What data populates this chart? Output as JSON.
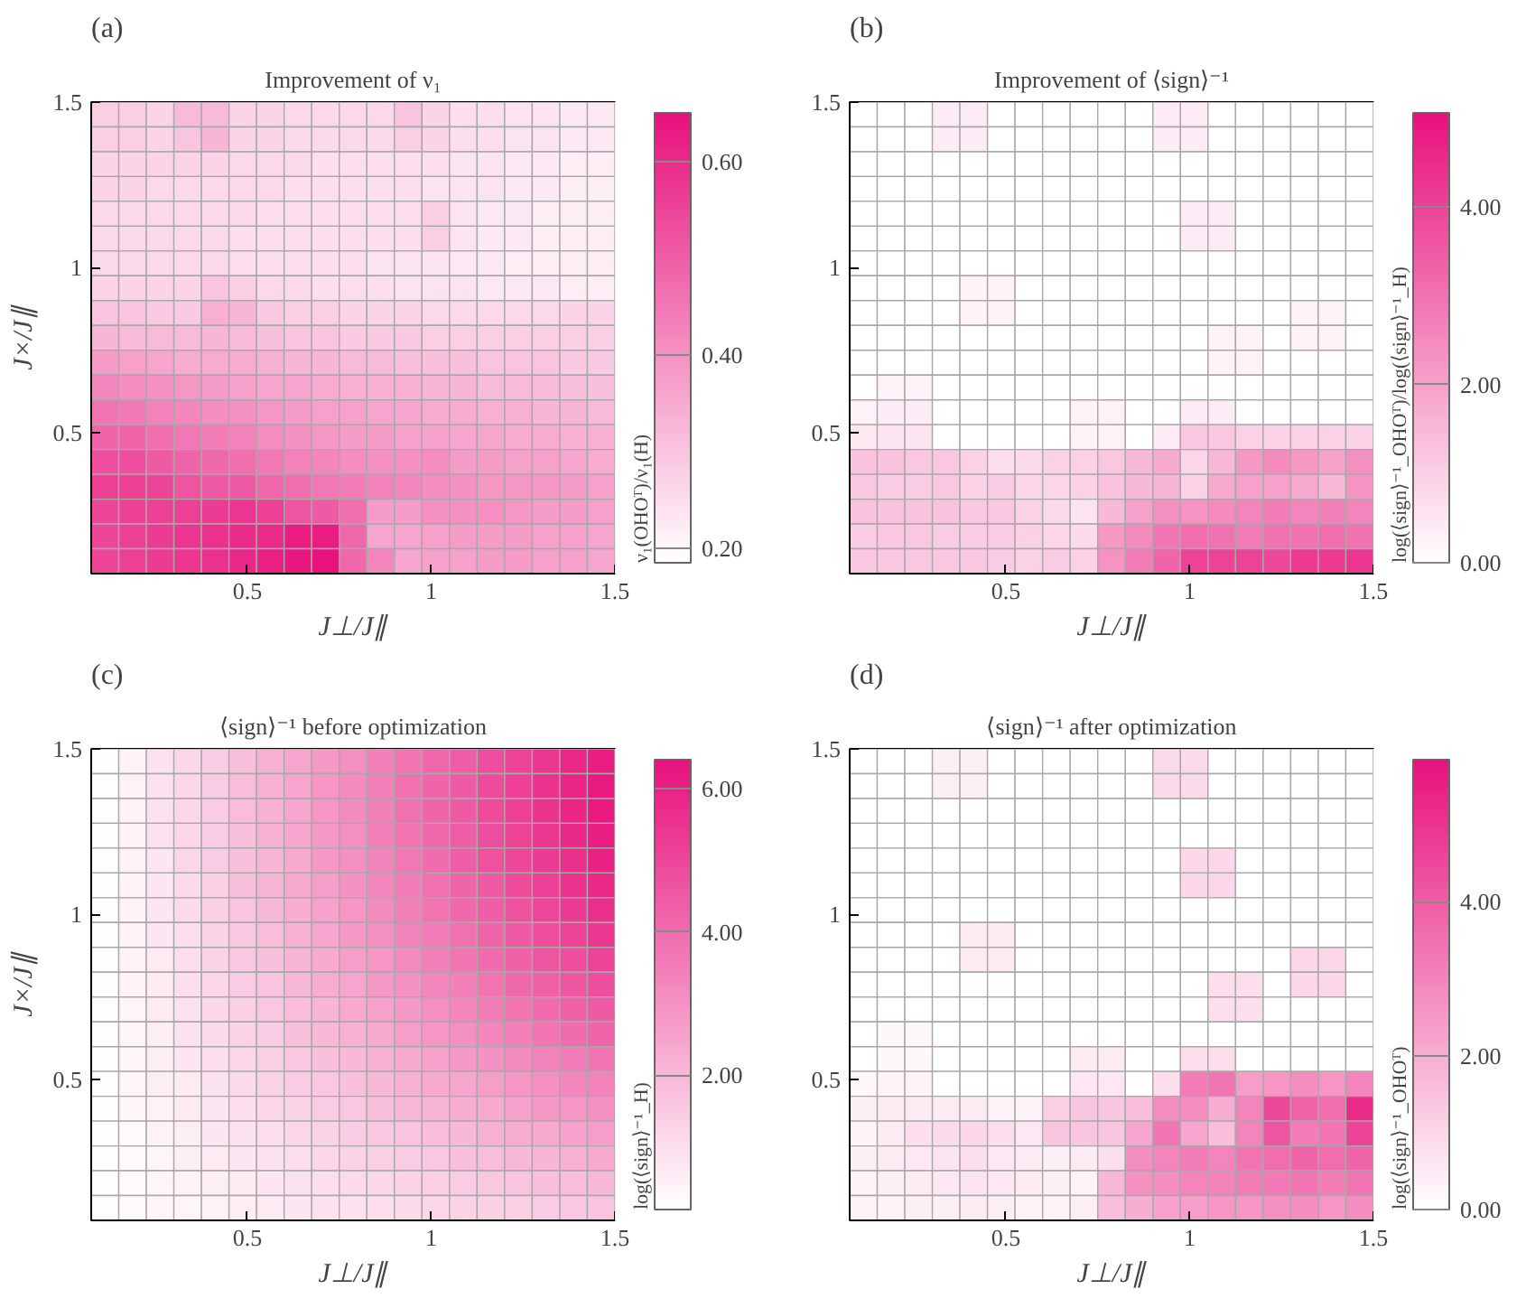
{
  "chart_data": [
    {
      "type": "heatmap",
      "title": "Improvement of ν₁",
      "annotations": [
        "(a)"
      ],
      "xlabel": "J⊥/J∥",
      "ylabel": "J×/J∥",
      "clabel": "ν₁(OHOᵀ)/ν₁(H)",
      "color": "#e8127c",
      "xlim": [
        0.075,
        1.5
      ],
      "ylim": [
        0.075,
        1.5
      ],
      "xticks": [
        0.5,
        1,
        1.5
      ],
      "yticks": [
        0.5,
        1,
        1.5
      ],
      "clim": [
        0.185,
        0.65
      ],
      "cticks": [
        {
          "value": 0.2,
          "label": "0.20"
        },
        {
          "value": 0.4,
          "label": "0.40"
        },
        {
          "value": 0.6,
          "label": "0.60"
        }
      ],
      "x": [
        0.1125,
        0.1875,
        0.2625,
        0.3375,
        0.4125,
        0.4875,
        0.5625,
        0.6375,
        0.7125,
        0.7875,
        0.8625,
        0.9375,
        1.0125,
        1.0875,
        1.1625,
        1.2375,
        1.3125,
        1.3875,
        1.4625
      ],
      "y": [
        1.4625,
        1.3875,
        1.3125,
        1.2375,
        1.1625,
        1.0875,
        1.0125,
        0.9375,
        0.8625,
        0.7875,
        0.7125,
        0.6375,
        0.5625,
        0.4875,
        0.4125,
        0.3375,
        0.2625,
        0.1875,
        0.1125
      ],
      "cells": [
        [
          0.28,
          0.28,
          0.27,
          0.32,
          0.32,
          0.27,
          0.27,
          0.26,
          0.26,
          0.26,
          0.26,
          0.3,
          0.27,
          0.25,
          0.25,
          0.24,
          0.24,
          0.23,
          0.23
        ],
        [
          0.28,
          0.28,
          0.27,
          0.3,
          0.33,
          0.27,
          0.27,
          0.26,
          0.26,
          0.26,
          0.26,
          0.28,
          0.27,
          0.25,
          0.25,
          0.24,
          0.24,
          0.23,
          0.23
        ],
        [
          0.27,
          0.27,
          0.27,
          0.27,
          0.27,
          0.26,
          0.26,
          0.26,
          0.25,
          0.25,
          0.25,
          0.25,
          0.25,
          0.24,
          0.24,
          0.23,
          0.23,
          0.22,
          0.22
        ],
        [
          0.27,
          0.27,
          0.26,
          0.26,
          0.26,
          0.26,
          0.26,
          0.25,
          0.25,
          0.25,
          0.25,
          0.25,
          0.24,
          0.24,
          0.24,
          0.23,
          0.23,
          0.22,
          0.22
        ],
        [
          0.26,
          0.26,
          0.26,
          0.26,
          0.26,
          0.26,
          0.25,
          0.25,
          0.25,
          0.25,
          0.25,
          0.25,
          0.28,
          0.24,
          0.23,
          0.23,
          0.22,
          0.22,
          0.22
        ],
        [
          0.26,
          0.26,
          0.26,
          0.26,
          0.26,
          0.25,
          0.25,
          0.25,
          0.25,
          0.25,
          0.25,
          0.25,
          0.28,
          0.24,
          0.23,
          0.23,
          0.22,
          0.22,
          0.22
        ],
        [
          0.26,
          0.26,
          0.26,
          0.26,
          0.26,
          0.25,
          0.25,
          0.25,
          0.25,
          0.25,
          0.24,
          0.24,
          0.24,
          0.23,
          0.23,
          0.22,
          0.22,
          0.22,
          0.22
        ],
        [
          0.27,
          0.27,
          0.27,
          0.27,
          0.3,
          0.28,
          0.26,
          0.26,
          0.25,
          0.25,
          0.25,
          0.24,
          0.24,
          0.24,
          0.23,
          0.23,
          0.23,
          0.22,
          0.22
        ],
        [
          0.3,
          0.3,
          0.29,
          0.29,
          0.34,
          0.33,
          0.29,
          0.28,
          0.28,
          0.27,
          0.27,
          0.27,
          0.26,
          0.26,
          0.26,
          0.26,
          0.26,
          0.27,
          0.27
        ],
        [
          0.33,
          0.32,
          0.32,
          0.32,
          0.33,
          0.32,
          0.31,
          0.3,
          0.3,
          0.29,
          0.29,
          0.29,
          0.28,
          0.28,
          0.28,
          0.28,
          0.28,
          0.28,
          0.28
        ],
        [
          0.38,
          0.37,
          0.36,
          0.35,
          0.35,
          0.35,
          0.34,
          0.33,
          0.33,
          0.32,
          0.32,
          0.31,
          0.31,
          0.31,
          0.3,
          0.3,
          0.3,
          0.29,
          0.29
        ],
        [
          0.42,
          0.41,
          0.4,
          0.39,
          0.38,
          0.37,
          0.36,
          0.36,
          0.35,
          0.34,
          0.34,
          0.34,
          0.33,
          0.33,
          0.32,
          0.32,
          0.32,
          0.31,
          0.31
        ],
        [
          0.46,
          0.45,
          0.43,
          0.42,
          0.41,
          0.4,
          0.39,
          0.38,
          0.37,
          0.37,
          0.36,
          0.36,
          0.35,
          0.35,
          0.34,
          0.34,
          0.33,
          0.33,
          0.32
        ],
        [
          0.49,
          0.49,
          0.47,
          0.45,
          0.44,
          0.43,
          0.41,
          0.4,
          0.39,
          0.38,
          0.38,
          0.37,
          0.37,
          0.36,
          0.36,
          0.35,
          0.35,
          0.34,
          0.34
        ],
        [
          0.53,
          0.53,
          0.51,
          0.49,
          0.48,
          0.47,
          0.45,
          0.43,
          0.42,
          0.41,
          0.4,
          0.4,
          0.41,
          0.38,
          0.38,
          0.37,
          0.37,
          0.36,
          0.35
        ],
        [
          0.56,
          0.56,
          0.55,
          0.52,
          0.51,
          0.51,
          0.48,
          0.47,
          0.45,
          0.44,
          0.43,
          0.42,
          0.41,
          0.4,
          0.39,
          0.39,
          0.39,
          0.38,
          0.37
        ],
        [
          0.55,
          0.56,
          0.56,
          0.56,
          0.57,
          0.58,
          0.56,
          0.52,
          0.51,
          0.47,
          0.38,
          0.38,
          0.4,
          0.4,
          0.4,
          0.39,
          0.38,
          0.38,
          0.37
        ],
        [
          0.55,
          0.56,
          0.57,
          0.58,
          0.59,
          0.6,
          0.6,
          0.63,
          0.63,
          0.48,
          0.36,
          0.36,
          0.37,
          0.38,
          0.38,
          0.38,
          0.37,
          0.37,
          0.36
        ],
        [
          0.55,
          0.56,
          0.57,
          0.58,
          0.59,
          0.61,
          0.62,
          0.64,
          0.65,
          0.48,
          0.42,
          0.36,
          0.37,
          0.37,
          0.38,
          0.38,
          0.37,
          0.37,
          0.36
        ]
      ]
    },
    {
      "type": "heatmap",
      "title": "Improvement of ⟨sign⟩⁻¹",
      "annotations": [
        "(b)"
      ],
      "xlabel": "J⊥/J∥",
      "clabel": "log(⟨sign⟩⁻¹_OHOᵀ)/log(⟨sign⟩⁻¹_H)",
      "color": "#e8127c",
      "xlim": [
        0.075,
        1.5
      ],
      "ylim": [
        0.075,
        1.5
      ],
      "xticks": [
        0.5,
        1,
        1.5
      ],
      "yticks": [
        0.5,
        1,
        1.5
      ],
      "clim": [
        0,
        5.05
      ],
      "cticks": [
        {
          "value": 0,
          "label": "0.00"
        },
        {
          "value": 2,
          "label": "2.00"
        },
        {
          "value": 4,
          "label": "4.00"
        }
      ],
      "x": [
        0.1125,
        0.1875,
        0.2625,
        0.3375,
        0.4125,
        0.4875,
        0.5625,
        0.6375,
        0.7125,
        0.7875,
        0.8625,
        0.9375,
        1.0125,
        1.0875,
        1.1625,
        1.2375,
        1.3125,
        1.3875,
        1.4625
      ],
      "y": [
        1.4625,
        1.3875,
        1.3125,
        1.2375,
        1.1625,
        1.0875,
        1.0125,
        0.9375,
        0.8625,
        0.7875,
        0.7125,
        0.6375,
        0.5625,
        0.4875,
        0.4125,
        0.3375,
        0.2625,
        0.1875,
        0.1125
      ],
      "cells": [
        [
          0,
          0,
          0,
          0.4,
          0.4,
          0,
          0,
          0,
          0,
          0,
          0,
          0.4,
          0.4,
          0,
          0,
          0,
          0,
          0,
          0
        ],
        [
          0,
          0,
          0,
          0.4,
          0.4,
          0,
          0,
          0,
          0,
          0,
          0,
          0.4,
          0.4,
          0,
          0,
          0,
          0,
          0,
          0
        ],
        [
          0,
          0,
          0,
          0,
          0,
          0,
          0,
          0,
          0,
          0,
          0,
          0,
          0,
          0,
          0,
          0,
          0,
          0,
          0
        ],
        [
          0,
          0,
          0,
          0,
          0,
          0,
          0,
          0,
          0,
          0,
          0,
          0,
          0,
          0,
          0,
          0,
          0,
          0,
          0
        ],
        [
          0,
          0,
          0,
          0,
          0,
          0,
          0,
          0,
          0,
          0,
          0,
          0,
          0.4,
          0.4,
          0,
          0,
          0,
          0,
          0
        ],
        [
          0,
          0,
          0,
          0,
          0,
          0,
          0,
          0,
          0,
          0,
          0,
          0,
          0.4,
          0.4,
          0,
          0,
          0,
          0,
          0
        ],
        [
          0,
          0,
          0,
          0,
          0,
          0,
          0,
          0,
          0,
          0,
          0,
          0,
          0,
          0,
          0,
          0,
          0,
          0,
          0
        ],
        [
          0,
          0,
          0,
          0,
          0.3,
          0.3,
          0,
          0,
          0,
          0,
          0,
          0,
          0,
          0,
          0,
          0,
          0,
          0,
          0
        ],
        [
          0,
          0,
          0,
          0,
          0.3,
          0.3,
          0,
          0,
          0,
          0,
          0,
          0,
          0,
          0,
          0,
          0,
          0.3,
          0.3,
          0
        ],
        [
          0,
          0,
          0,
          0,
          0,
          0,
          0,
          0,
          0,
          0,
          0,
          0,
          0,
          0.3,
          0.3,
          0,
          0.3,
          0.3,
          0
        ],
        [
          0,
          0,
          0,
          0,
          0,
          0,
          0,
          0,
          0,
          0,
          0,
          0,
          0,
          0.3,
          0.3,
          0,
          0,
          0,
          0
        ],
        [
          0,
          0.3,
          0.3,
          0,
          0,
          0,
          0,
          0,
          0,
          0,
          0,
          0,
          0,
          0,
          0,
          0,
          0,
          0,
          0
        ],
        [
          0.3,
          0.4,
          0.4,
          0,
          0,
          0,
          0,
          0,
          0.3,
          0.3,
          0,
          0,
          0.4,
          0.4,
          0,
          0,
          0,
          0,
          0
        ],
        [
          0.5,
          0.6,
          0.6,
          0,
          0,
          0,
          0,
          0,
          0.3,
          0.3,
          0,
          0.4,
          1.2,
          1.2,
          1.0,
          1.0,
          1.0,
          1.0,
          1.0
        ],
        [
          1.3,
          1.3,
          1.2,
          1.2,
          1.0,
          0.7,
          0.8,
          1.0,
          1.0,
          1.2,
          1.5,
          1.8,
          0.9,
          1.5,
          2.2,
          2.5,
          2.2,
          2.0,
          2.4
        ],
        [
          1.2,
          1.1,
          1.1,
          1.2,
          1.0,
          1.1,
          0.9,
          0.9,
          1.0,
          1.3,
          1.5,
          1.6,
          1.0,
          1.8,
          2.0,
          2.0,
          1.8,
          1.5,
          2.3
        ],
        [
          1.3,
          1.3,
          1.3,
          1.3,
          1.2,
          1.2,
          1.0,
          0.8,
          0.6,
          1.5,
          2.0,
          2.4,
          2.3,
          2.5,
          2.6,
          2.8,
          2.6,
          2.7,
          2.6
        ],
        [
          1.1,
          1.2,
          1.2,
          1.1,
          1.1,
          1.1,
          1.0,
          0.9,
          0.8,
          2.2,
          2.5,
          2.9,
          3.1,
          3.0,
          2.8,
          3.0,
          3.0,
          3.1,
          3.0
        ],
        [
          1.2,
          1.2,
          1.2,
          1.2,
          1.2,
          1.1,
          1.0,
          1.1,
          1.0,
          2.3,
          2.8,
          3.3,
          4.0,
          4.0,
          4.0,
          3.9,
          4.2,
          4.2,
          4.3
        ]
      ]
    },
    {
      "type": "heatmap",
      "title": "⟨sign⟩⁻¹ before optimization",
      "annotations": [
        "(c)"
      ],
      "xlabel": "J⊥/J∥",
      "ylabel": "J×/J∥",
      "clabel": "log(⟨sign⟩⁻¹_H)",
      "color": "#e8127c",
      "xlim": [
        0.075,
        1.5
      ],
      "ylim": [
        0.075,
        1.5
      ],
      "xticks": [
        0.5,
        1,
        1.5
      ],
      "yticks": [
        0.5,
        1,
        1.5
      ],
      "clim": [
        0.13,
        6.4
      ],
      "cticks": [
        {
          "value": 2,
          "label": "2.00"
        },
        {
          "value": 4,
          "label": "4.00"
        },
        {
          "value": 6,
          "label": "6.00"
        }
      ],
      "x": [
        0.1125,
        0.1875,
        0.2625,
        0.3375,
        0.4125,
        0.4875,
        0.5625,
        0.6375,
        0.7125,
        0.7875,
        0.8625,
        0.9375,
        1.0125,
        1.0875,
        1.1625,
        1.2375,
        1.3125,
        1.3875,
        1.4625
      ],
      "y": [
        1.4625,
        1.3875,
        1.3125,
        1.2375,
        1.1625,
        1.0875,
        1.0125,
        0.9375,
        0.8625,
        0.7875,
        0.7125,
        0.6375,
        0.5625,
        0.4875,
        0.4125,
        0.3375,
        0.2625,
        0.1875,
        0.1125
      ],
      "cells": [
        [
          0.2,
          0.5,
          0.9,
          1.2,
          1.5,
          1.8,
          2.2,
          2.5,
          2.8,
          3.1,
          3.5,
          3.8,
          4.1,
          4.4,
          4.8,
          5.1,
          5.4,
          5.8,
          6.1
        ],
        [
          0.2,
          0.5,
          0.9,
          1.2,
          1.5,
          1.9,
          2.2,
          2.5,
          2.9,
          3.2,
          3.5,
          3.9,
          4.2,
          4.5,
          4.9,
          5.2,
          5.5,
          5.9,
          6.2
        ],
        [
          0.2,
          0.5,
          0.9,
          1.2,
          1.5,
          1.9,
          2.2,
          2.5,
          2.9,
          3.2,
          3.5,
          3.9,
          4.2,
          4.5,
          4.9,
          5.2,
          5.5,
          5.9,
          6.2
        ],
        [
          0.2,
          0.5,
          0.9,
          1.2,
          1.5,
          1.8,
          2.2,
          2.5,
          2.8,
          3.1,
          3.5,
          3.8,
          4.1,
          4.4,
          4.8,
          5.1,
          5.4,
          5.8,
          6.1
        ],
        [
          0.2,
          0.5,
          0.8,
          1.2,
          1.5,
          1.8,
          2.1,
          2.4,
          2.8,
          3.1,
          3.4,
          3.7,
          4.0,
          4.4,
          4.7,
          5.0,
          5.3,
          5.6,
          6.0
        ],
        [
          0.2,
          0.5,
          0.8,
          1.1,
          1.4,
          1.8,
          2.1,
          2.4,
          2.7,
          3.0,
          3.3,
          3.6,
          3.9,
          4.2,
          4.5,
          4.9,
          5.2,
          5.5,
          5.8
        ],
        [
          0.2,
          0.5,
          0.8,
          1.1,
          1.4,
          1.7,
          2.0,
          2.3,
          2.6,
          2.9,
          3.2,
          3.5,
          3.8,
          4.1,
          4.4,
          4.7,
          5.0,
          5.3,
          5.6
        ],
        [
          0.2,
          0.5,
          0.8,
          1.0,
          1.3,
          1.6,
          1.9,
          2.2,
          2.5,
          2.8,
          3.1,
          3.4,
          3.6,
          3.9,
          4.2,
          4.5,
          4.8,
          5.1,
          5.4
        ],
        [
          0.2,
          0.5,
          0.7,
          1.0,
          1.3,
          1.6,
          1.8,
          2.1,
          2.4,
          2.7,
          2.9,
          3.2,
          3.5,
          3.8,
          4.0,
          4.3,
          4.6,
          4.8,
          5.1
        ],
        [
          0.2,
          0.5,
          0.7,
          1.0,
          1.2,
          1.5,
          1.7,
          2.0,
          2.3,
          2.5,
          2.8,
          3.0,
          3.3,
          3.5,
          3.8,
          4.1,
          4.3,
          4.6,
          4.8
        ],
        [
          0.2,
          0.4,
          0.7,
          0.9,
          1.2,
          1.4,
          1.6,
          1.9,
          2.1,
          2.4,
          2.6,
          2.8,
          3.1,
          3.3,
          3.6,
          3.8,
          4.0,
          4.3,
          4.5
        ],
        [
          0.2,
          0.4,
          0.6,
          0.9,
          1.1,
          1.3,
          1.5,
          1.8,
          2.0,
          2.2,
          2.4,
          2.7,
          2.9,
          3.1,
          3.3,
          3.5,
          3.8,
          4.0,
          4.2
        ],
        [
          0.2,
          0.4,
          0.6,
          0.8,
          1.0,
          1.2,
          1.4,
          1.6,
          1.8,
          2.0,
          2.2,
          2.4,
          2.6,
          2.8,
          3.0,
          3.2,
          3.4,
          3.6,
          3.8
        ],
        [
          0.2,
          0.4,
          0.6,
          0.7,
          0.9,
          1.1,
          1.3,
          1.5,
          1.6,
          1.8,
          2.0,
          2.2,
          2.4,
          2.5,
          2.7,
          2.9,
          3.1,
          3.3,
          3.4
        ],
        [
          0.2,
          0.4,
          0.5,
          0.7,
          0.8,
          1.0,
          1.2,
          1.3,
          1.5,
          1.6,
          1.8,
          2.0,
          2.1,
          2.3,
          2.4,
          2.6,
          2.8,
          2.9,
          3.1
        ],
        [
          0.2,
          0.3,
          0.5,
          0.6,
          0.8,
          0.9,
          1.0,
          1.2,
          1.3,
          1.5,
          1.6,
          1.7,
          1.9,
          2.0,
          2.2,
          2.3,
          2.4,
          2.6,
          2.7
        ],
        [
          0.2,
          0.3,
          0.4,
          0.6,
          0.7,
          0.8,
          0.9,
          1.0,
          1.2,
          1.3,
          1.4,
          1.5,
          1.6,
          1.8,
          1.9,
          2.0,
          2.1,
          2.2,
          2.4
        ],
        [
          0.2,
          0.3,
          0.4,
          0.5,
          0.6,
          0.7,
          0.8,
          0.9,
          1.0,
          1.1,
          1.2,
          1.3,
          1.4,
          1.5,
          1.6,
          1.7,
          1.8,
          1.9,
          2.0
        ],
        [
          0.2,
          0.3,
          0.4,
          0.4,
          0.5,
          0.6,
          0.7,
          0.8,
          0.9,
          0.9,
          1.0,
          1.1,
          1.2,
          1.3,
          1.4,
          1.4,
          1.5,
          1.6,
          1.7
        ]
      ]
    },
    {
      "type": "heatmap",
      "title": "⟨sign⟩⁻¹ after optimization",
      "annotations": [
        "(d)"
      ],
      "xlabel": "J⊥/J∥",
      "clabel": "log(⟨sign⟩⁻¹_OHOᵀ)",
      "color": "#e8127c",
      "xlim": [
        0.075,
        1.5
      ],
      "ylim": [
        0.075,
        1.5
      ],
      "xticks": [
        0.5,
        1,
        1.5
      ],
      "yticks": [
        0.5,
        1,
        1.5
      ],
      "clim": [
        0,
        5.85
      ],
      "cticks": [
        {
          "value": 0,
          "label": "0.00"
        },
        {
          "value": 2,
          "label": "2.00"
        },
        {
          "value": 4,
          "label": "4.00"
        }
      ],
      "x": [
        0.1125,
        0.1875,
        0.2625,
        0.3375,
        0.4125,
        0.4875,
        0.5625,
        0.6375,
        0.7125,
        0.7875,
        0.8625,
        0.9375,
        1.0125,
        1.0875,
        1.1625,
        1.2375,
        1.3125,
        1.3875,
        1.4625
      ],
      "y": [
        1.4625,
        1.3875,
        1.3125,
        1.2375,
        1.1625,
        1.0875,
        1.0125,
        0.9375,
        0.8625,
        0.7875,
        0.7125,
        0.6375,
        0.5625,
        0.4875,
        0.4125,
        0.3375,
        0.2625,
        0.1875,
        0.1125
      ],
      "cells": [
        [
          0,
          0,
          0,
          0.4,
          0.4,
          0,
          0,
          0,
          0,
          0,
          0,
          0.9,
          0.9,
          0,
          0,
          0,
          0,
          0,
          0
        ],
        [
          0,
          0,
          0,
          0.4,
          0.4,
          0,
          0,
          0,
          0,
          0,
          0,
          0.9,
          0.9,
          0,
          0,
          0,
          0,
          0,
          0
        ],
        [
          0,
          0,
          0,
          0,
          0,
          0,
          0,
          0,
          0,
          0,
          0,
          0,
          0,
          0,
          0,
          0,
          0,
          0,
          0
        ],
        [
          0,
          0,
          0,
          0,
          0,
          0,
          0,
          0,
          0,
          0,
          0,
          0,
          0,
          0,
          0,
          0,
          0,
          0,
          0
        ],
        [
          0,
          0,
          0,
          0,
          0,
          0,
          0,
          0,
          0,
          0,
          0,
          0,
          1.0,
          1.0,
          0,
          0,
          0,
          0,
          0
        ],
        [
          0,
          0,
          0,
          0,
          0,
          0,
          0,
          0,
          0,
          0,
          0,
          0,
          1.0,
          1.0,
          0,
          0,
          0,
          0,
          0
        ],
        [
          0,
          0,
          0,
          0,
          0,
          0,
          0,
          0,
          0,
          0,
          0,
          0,
          0,
          0,
          0,
          0,
          0,
          0,
          0
        ],
        [
          0,
          0,
          0,
          0,
          0.5,
          0.5,
          0,
          0,
          0,
          0,
          0,
          0,
          0,
          0,
          0,
          0,
          0,
          0,
          0
        ],
        [
          0,
          0,
          0,
          0,
          0.5,
          0.5,
          0,
          0,
          0,
          0,
          0,
          0,
          0,
          0,
          0,
          0,
          1.0,
          1.0,
          0
        ],
        [
          0,
          0,
          0,
          0,
          0,
          0,
          0,
          0,
          0,
          0,
          0,
          0,
          0,
          0.8,
          0.8,
          0,
          1.0,
          1.0,
          0
        ],
        [
          0,
          0,
          0,
          0,
          0,
          0,
          0,
          0,
          0,
          0,
          0,
          0,
          0,
          0.8,
          0.8,
          0,
          0,
          0,
          0
        ],
        [
          0,
          0.2,
          0.2,
          0,
          0,
          0,
          0,
          0,
          0,
          0,
          0,
          0,
          0,
          0,
          0,
          0,
          0,
          0,
          0
        ],
        [
          0,
          0.2,
          0.2,
          0,
          0,
          0,
          0,
          0,
          0.5,
          0.5,
          0,
          0,
          0.8,
          0.8,
          0,
          0,
          0,
          0,
          0
        ],
        [
          0.2,
          0.3,
          0.3,
          0,
          0,
          0,
          0,
          0,
          0.6,
          0.6,
          0,
          0.8,
          3.2,
          3.4,
          2.4,
          2.6,
          2.8,
          2.6,
          3.0
        ],
        [
          0.4,
          0.5,
          0.5,
          0.5,
          0.5,
          0.3,
          0.3,
          1.2,
          1.4,
          1.4,
          1.6,
          2.8,
          2.8,
          2.0,
          3.0,
          4.5,
          3.8,
          3.6,
          5.2
        ],
        [
          0.3,
          0.5,
          0.8,
          0.9,
          1.0,
          0.8,
          0.6,
          1.4,
          1.4,
          1.4,
          2.2,
          3.4,
          2.2,
          1.6,
          3.0,
          4.2,
          3.2,
          3.4,
          4.6
        ],
        [
          0.4,
          0.5,
          0.6,
          0.7,
          0.8,
          0.6,
          0.5,
          0.4,
          0.5,
          0.8,
          2.8,
          3.0,
          3.2,
          3.0,
          3.4,
          3.6,
          3.8,
          3.6,
          3.8
        ],
        [
          0.3,
          0.4,
          0.5,
          0.6,
          0.7,
          0.6,
          0.5,
          0.4,
          0.3,
          1.8,
          2.7,
          2.8,
          3.0,
          3.1,
          3.2,
          3.3,
          3.4,
          3.2,
          3.4
        ],
        [
          0.3,
          0.3,
          0.4,
          0.4,
          0.5,
          0.4,
          0.3,
          0.3,
          0.4,
          1.6,
          2.0,
          2.3,
          2.4,
          2.6,
          2.6,
          2.7,
          2.8,
          2.6,
          2.8
        ]
      ]
    }
  ]
}
